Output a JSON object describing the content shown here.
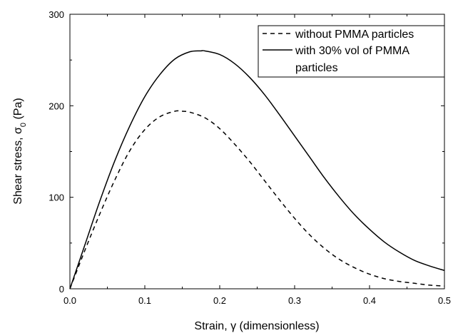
{
  "chart_data": {
    "type": "line",
    "xlabel": {
      "prefix": "Strain, ",
      "symbol": "γ",
      "suffix": " (dimensionless)"
    },
    "ylabel": {
      "prefix": "Shear stress, ",
      "symbol": "σ",
      "subscript": "0",
      "suffix": " (Pa)"
    },
    "xlim": [
      0,
      0.5
    ],
    "ylim": [
      0,
      300
    ],
    "x_ticks": [
      0.0,
      0.1,
      0.2,
      0.3,
      0.4,
      0.5
    ],
    "x_tick_labels": [
      "0.0",
      "0.1",
      "0.2",
      "0.3",
      "0.4",
      "0.5"
    ],
    "y_ticks": [
      0,
      100,
      200,
      300
    ],
    "y_tick_labels": [
      "0",
      "100",
      "200",
      "300"
    ],
    "grid": false,
    "legend_position": "top-right",
    "series": [
      {
        "name": "without PMMA particles",
        "style": "dashed",
        "color": "#000000",
        "x": [
          0,
          0.02,
          0.04,
          0.06,
          0.08,
          0.1,
          0.12,
          0.14,
          0.15,
          0.16,
          0.18,
          0.2,
          0.22,
          0.24,
          0.26,
          0.28,
          0.3,
          0.32,
          0.34,
          0.36,
          0.38,
          0.4,
          0.42,
          0.44,
          0.46,
          0.48,
          0.5
        ],
        "y": [
          0,
          42,
          82,
          119,
          151,
          174,
          188,
          194,
          194,
          193,
          187,
          175,
          158,
          139,
          118,
          97,
          77,
          59,
          44,
          32,
          23,
          16,
          11,
          8,
          6,
          4,
          3
        ]
      },
      {
        "name": "with 30% vol of PMMA particles",
        "legend_lines": [
          "with 30% vol of PMMA",
          "particles"
        ],
        "style": "solid",
        "color": "#000000",
        "x": [
          0,
          0.02,
          0.04,
          0.06,
          0.08,
          0.1,
          0.12,
          0.14,
          0.16,
          0.175,
          0.18,
          0.2,
          0.22,
          0.24,
          0.26,
          0.28,
          0.3,
          0.32,
          0.34,
          0.36,
          0.38,
          0.4,
          0.42,
          0.44,
          0.46,
          0.48,
          0.5
        ],
        "y": [
          0,
          48,
          96,
          140,
          178,
          210,
          234,
          251,
          259,
          260,
          260,
          256,
          246,
          231,
          212,
          190,
          167,
          144,
          121,
          100,
          81,
          65,
          51,
          40,
          31,
          25,
          20
        ]
      }
    ]
  }
}
